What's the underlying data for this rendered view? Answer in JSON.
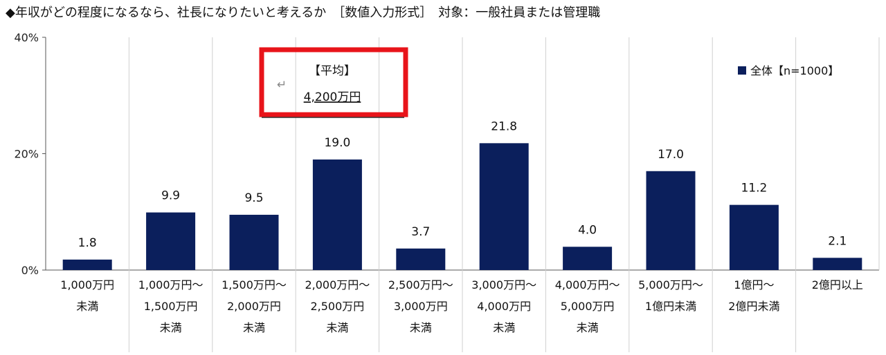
{
  "header": {
    "title": "◆年収がどの程度になるなら、社長になりたいと考えるか　［数値入力形式］　対象：一般社員または管理職"
  },
  "average_box": {
    "title": "【平均】",
    "value": "4,200万円",
    "return_glyph": "↵"
  },
  "chart_data": {
    "type": "bar",
    "ylim": [
      0,
      40
    ],
    "yticks": [
      "0%",
      "20%",
      "40%"
    ],
    "ytick_values": [
      0,
      20,
      40
    ],
    "categories": [
      [
        "1,000万円",
        "未満"
      ],
      [
        "1,000万円～",
        "1,500万円",
        "未満"
      ],
      [
        "1,500万円～",
        "2,000万円",
        "未満"
      ],
      [
        "2,000万円～",
        "2,500万円",
        "未満"
      ],
      [
        "2,500万円～",
        "3,000万円",
        "未満"
      ],
      [
        "3,000万円～",
        "4,000万円",
        "未満"
      ],
      [
        "4,000万円～",
        "5,000万円",
        "未満"
      ],
      [
        "5,000万円～",
        "1億円未満"
      ],
      [
        "1億円～",
        "2億円未満"
      ],
      [
        "2億円以上"
      ]
    ],
    "series": [
      {
        "name": "全体【n=1000】",
        "color": "#0b1f5c",
        "values": [
          1.8,
          9.9,
          9.5,
          19.0,
          3.7,
          21.8,
          4.0,
          17.0,
          11.2,
          2.1
        ],
        "labels": [
          "1.8",
          "9.9",
          "9.5",
          "19.0",
          "3.7",
          "21.8",
          "4.0",
          "17.0",
          "11.2",
          "2.1"
        ]
      }
    ],
    "legend_position": "top-right",
    "grid": false
  }
}
